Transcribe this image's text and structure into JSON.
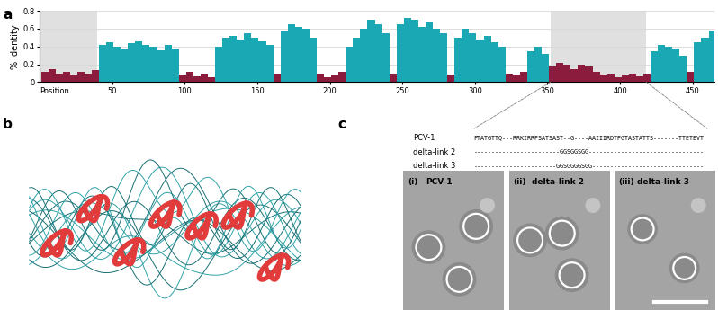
{
  "chart_data": {
    "type": "bar",
    "y_label": "% identity",
    "x_label": "Position",
    "x": [
      1,
      6,
      11,
      16,
      21,
      26,
      31,
      36,
      41,
      46,
      51,
      56,
      61,
      66,
      71,
      76,
      81,
      86,
      91,
      96,
      101,
      106,
      111,
      116,
      121,
      126,
      131,
      136,
      141,
      146,
      151,
      156,
      161,
      166,
      171,
      176,
      181,
      186,
      191,
      196,
      201,
      206,
      211,
      216,
      221,
      226,
      231,
      236,
      241,
      246,
      251,
      256,
      261,
      266,
      271,
      276,
      281,
      286,
      291,
      296,
      301,
      306,
      311,
      316,
      321,
      326,
      331,
      336,
      341,
      346,
      351,
      356,
      361,
      366,
      371,
      376,
      381,
      386,
      391,
      396,
      401,
      406,
      411,
      416,
      421,
      426,
      431,
      436,
      441,
      446,
      451,
      456,
      461
    ],
    "values": [
      0.12,
      0.15,
      0.1,
      0.12,
      0.08,
      0.12,
      0.1,
      0.14,
      0.42,
      0.45,
      0.4,
      0.38,
      0.44,
      0.46,
      0.42,
      0.4,
      0.36,
      0.42,
      0.38,
      0.08,
      0.12,
      0.06,
      0.1,
      0.05,
      0.4,
      0.5,
      0.52,
      0.48,
      0.55,
      0.5,
      0.46,
      0.42,
      0.1,
      0.58,
      0.65,
      0.62,
      0.6,
      0.5,
      0.1,
      0.05,
      0.08,
      0.12,
      0.4,
      0.5,
      0.6,
      0.7,
      0.65,
      0.55,
      0.1,
      0.65,
      0.72,
      0.7,
      0.62,
      0.68,
      0.6,
      0.55,
      0.08,
      0.5,
      0.6,
      0.55,
      0.48,
      0.52,
      0.45,
      0.4,
      0.1,
      0.08,
      0.12,
      0.35,
      0.4,
      0.32,
      0.18,
      0.22,
      0.2,
      0.15,
      0.2,
      0.18,
      0.12,
      0.08,
      0.1,
      0.05,
      0.08,
      0.1,
      0.06,
      0.1,
      0.35,
      0.42,
      0.4,
      0.38,
      0.3,
      0.12,
      0.45,
      0.5,
      0.58
    ],
    "colors": [
      "#8c1c3d",
      "#8c1c3d",
      "#8c1c3d",
      "#8c1c3d",
      "#8c1c3d",
      "#8c1c3d",
      "#8c1c3d",
      "#8c1c3d",
      "#1ba8b5",
      "#1ba8b5",
      "#1ba8b5",
      "#1ba8b5",
      "#1ba8b5",
      "#1ba8b5",
      "#1ba8b5",
      "#1ba8b5",
      "#1ba8b5",
      "#1ba8b5",
      "#1ba8b5",
      "#8c1c3d",
      "#8c1c3d",
      "#8c1c3d",
      "#8c1c3d",
      "#8c1c3d",
      "#1ba8b5",
      "#1ba8b5",
      "#1ba8b5",
      "#1ba8b5",
      "#1ba8b5",
      "#1ba8b5",
      "#1ba8b5",
      "#1ba8b5",
      "#8c1c3d",
      "#1ba8b5",
      "#1ba8b5",
      "#1ba8b5",
      "#1ba8b5",
      "#1ba8b5",
      "#8c1c3d",
      "#8c1c3d",
      "#8c1c3d",
      "#8c1c3d",
      "#1ba8b5",
      "#1ba8b5",
      "#1ba8b5",
      "#1ba8b5",
      "#1ba8b5",
      "#1ba8b5",
      "#8c1c3d",
      "#1ba8b5",
      "#1ba8b5",
      "#1ba8b5",
      "#1ba8b5",
      "#1ba8b5",
      "#1ba8b5",
      "#1ba8b5",
      "#8c1c3d",
      "#1ba8b5",
      "#1ba8b5",
      "#1ba8b5",
      "#1ba8b5",
      "#1ba8b5",
      "#1ba8b5",
      "#1ba8b5",
      "#8c1c3d",
      "#8c1c3d",
      "#8c1c3d",
      "#1ba8b5",
      "#1ba8b5",
      "#1ba8b5",
      "#8c1c3d",
      "#8c1c3d",
      "#8c1c3d",
      "#8c1c3d",
      "#8c1c3d",
      "#8c1c3d",
      "#8c1c3d",
      "#8c1c3d",
      "#8c1c3d",
      "#8c1c3d",
      "#8c1c3d",
      "#8c1c3d",
      "#8c1c3d",
      "#8c1c3d",
      "#1ba8b5",
      "#1ba8b5",
      "#1ba8b5",
      "#1ba8b5",
      "#1ba8b5",
      "#8c1c3d",
      "#1ba8b5",
      "#1ba8b5",
      "#1ba8b5"
    ],
    "xlim": [
      0,
      465
    ],
    "xticks": [
      50,
      100,
      150,
      200,
      250,
      300,
      350,
      400,
      450
    ],
    "ylim": [
      0,
      0.8
    ],
    "yticks": [
      0,
      0.2,
      0.4,
      0.6,
      0.8
    ],
    "grid": true,
    "shaded_regions": [
      [
        0,
        40
      ],
      [
        352,
        418
      ]
    ]
  },
  "panel_labels": [
    "a",
    "b",
    "c"
  ],
  "alignment": [
    {
      "name": "PCV-1",
      "sequence": "FTATGTTQ---RRKIRRPSATSAST--G----AAIIIRDTPGTASTATTS-------TTETEVT"
    },
    {
      "name": "delta-link 2",
      "sequence": "------------------------GGSGGSGG--------------------------------"
    },
    {
      "name": "delta-link 3",
      "sequence": "-----------------------GGSGGGGSGG-------------------------------"
    }
  ],
  "micrographs": [
    {
      "index": "(i)",
      "name": "PCV-1"
    },
    {
      "index": "(ii)",
      "name": "delta-link 2"
    },
    {
      "index": "(iii)",
      "name": "delta-link 3"
    }
  ]
}
